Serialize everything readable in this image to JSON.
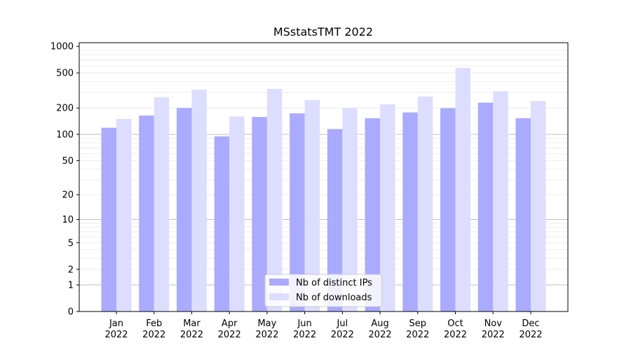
{
  "chart_data": {
    "type": "bar",
    "title": "MSstatsTMT 2022",
    "xlabel": "",
    "ylabel": "",
    "scale": "log(1+y)",
    "ylim": [
      0,
      1100
    ],
    "yticks": [
      0,
      1,
      2,
      5,
      10,
      20,
      50,
      100,
      200,
      500,
      1000
    ],
    "grid": "y",
    "legend_position": "bottom-center",
    "categories": [
      [
        "Jan",
        "2022"
      ],
      [
        "Feb",
        "2022"
      ],
      [
        "Mar",
        "2022"
      ],
      [
        "Apr",
        "2022"
      ],
      [
        "May",
        "2022"
      ],
      [
        "Jun",
        "2022"
      ],
      [
        "Jul",
        "2022"
      ],
      [
        "Aug",
        "2022"
      ],
      [
        "Sep",
        "2022"
      ],
      [
        "Oct",
        "2022"
      ],
      [
        "Nov",
        "2022"
      ],
      [
        "Dec",
        "2022"
      ]
    ],
    "series": [
      {
        "name": "Nb of distinct IPs",
        "color": "#aaaaff",
        "values": [
          119,
          164,
          200,
          95,
          158,
          174,
          115,
          153,
          178,
          199,
          230,
          153
        ]
      },
      {
        "name": "Nb of downloads",
        "color": "#ddddff",
        "values": [
          150,
          265,
          323,
          160,
          330,
          245,
          200,
          220,
          270,
          570,
          310,
          240
        ]
      }
    ]
  }
}
